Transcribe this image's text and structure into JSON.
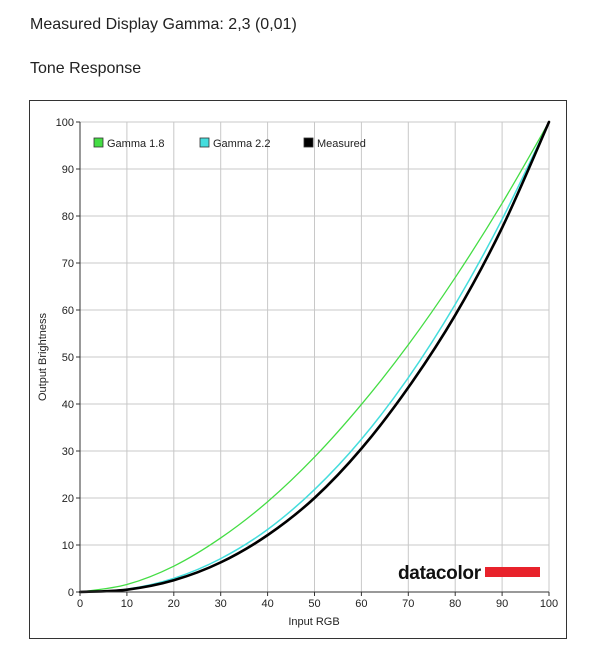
{
  "header": {
    "measured_gamma_label": "Measured Display Gamma: 2,3 (0,01)",
    "section_title": "Tone Response"
  },
  "logo": {
    "text": "datacolor",
    "color": "#e8222b"
  },
  "chart_data": {
    "type": "line",
    "title": "",
    "xlabel": "Input RGB",
    "ylabel": "Output Brightness",
    "xlim": [
      0,
      100
    ],
    "ylim": [
      0,
      100
    ],
    "x_ticks": [
      0,
      10,
      20,
      30,
      40,
      50,
      60,
      70,
      80,
      90,
      100
    ],
    "y_ticks": [
      0,
      10,
      20,
      30,
      40,
      50,
      60,
      70,
      80,
      90,
      100
    ],
    "grid": true,
    "legend_position": "top-left",
    "series": [
      {
        "name": "Gamma 1.8",
        "color": "#44dd44",
        "x": [
          0,
          10,
          20,
          30,
          40,
          50,
          60,
          70,
          80,
          90,
          100
        ],
        "y": [
          0,
          1.6,
          5.5,
          11.5,
          19.2,
          28.7,
          39.9,
          52.6,
          66.9,
          82.7,
          100
        ]
      },
      {
        "name": "Gamma 2.2",
        "color": "#44dddd",
        "x": [
          0,
          10,
          20,
          30,
          40,
          50,
          60,
          70,
          80,
          90,
          100
        ],
        "y": [
          0,
          0.6,
          2.9,
          7.1,
          13.3,
          21.8,
          32.5,
          45.6,
          61.2,
          79.3,
          100
        ]
      },
      {
        "name": "Measured",
        "color": "#000000",
        "x": [
          0,
          10,
          20,
          30,
          40,
          50,
          60,
          70,
          80,
          90,
          100
        ],
        "y": [
          0,
          0.5,
          2.5,
          6.3,
          12.1,
          20.0,
          30.5,
          43.5,
          58.9,
          77.5,
          100
        ]
      }
    ]
  }
}
